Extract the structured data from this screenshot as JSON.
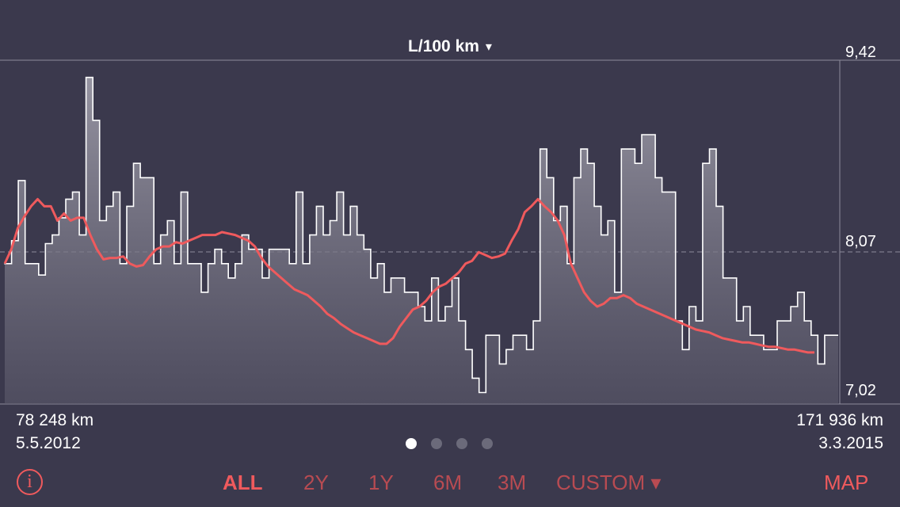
{
  "header": {
    "unit_label": "L/100 km",
    "caret": "▾"
  },
  "axis": {
    "max_label": "9,42",
    "mid_label": "8,07",
    "min_label": "7,02"
  },
  "footer": {
    "start_km": "78 248 km",
    "start_date": "5.5.2012",
    "end_km": "171 936 km",
    "end_date": "3.3.2015"
  },
  "pager": {
    "count": 4,
    "active": 0
  },
  "range_buttons": [
    "ALL",
    "2Y",
    "1Y",
    "6M",
    "3M",
    "CUSTOM ▾"
  ],
  "active_range": "ALL",
  "map_label": "MAP",
  "info_icon": "i",
  "colors": {
    "background": "#3b394d",
    "accent": "#ef5a5d",
    "accent_dim": "#b84b52",
    "trend": "#ef5a5d"
  },
  "chart_data": {
    "type": "area",
    "ylim": [
      7.02,
      9.42
    ],
    "mean_line": 8.07,
    "x_start": "78 248 km",
    "x_end": "171 936 km",
    "series": [
      {
        "values": [
          8.0,
          8.16,
          8.58,
          8.0,
          8.0,
          7.92,
          8.14,
          8.2,
          8.32,
          8.45,
          8.5,
          8.2,
          9.3,
          9.0,
          8.3,
          8.4,
          8.5,
          8.0,
          8.4,
          8.7,
          8.6,
          8.6,
          8.0,
          8.2,
          8.3,
          8.0,
          8.5,
          8.0,
          8.0,
          7.8,
          8.0,
          8.1,
          8.0,
          7.9,
          8.0,
          8.2,
          8.1,
          8.1,
          7.9,
          8.1,
          8.1,
          8.1,
          8.0,
          8.5,
          8.0,
          8.2,
          8.4,
          8.2,
          8.3,
          8.5,
          8.2,
          8.4,
          8.2,
          8.1,
          7.9,
          8.0,
          7.8,
          7.9,
          7.9,
          7.8,
          7.8,
          7.7,
          7.6,
          7.9,
          7.6,
          7.7,
          7.9,
          7.6,
          7.4,
          7.2,
          7.1,
          7.5,
          7.5,
          7.3,
          7.4,
          7.5,
          7.5,
          7.4,
          7.6,
          8.8,
          8.6,
          8.3,
          8.4,
          8.0,
          8.6,
          8.8,
          8.7,
          8.4,
          8.2,
          8.3,
          7.8,
          8.8,
          8.8,
          8.7,
          8.9,
          8.9,
          8.6,
          8.5,
          8.5,
          7.6,
          7.4,
          7.7,
          7.6,
          8.7,
          8.8,
          8.4,
          7.9,
          7.9,
          7.6,
          7.7,
          7.5,
          7.5,
          7.4,
          7.4,
          7.6,
          7.6,
          7.7,
          7.8,
          7.6,
          7.5,
          7.3,
          7.5,
          7.5
        ]
      },
      {
        "name": "trend",
        "values": [
          8.0,
          8.1,
          8.25,
          8.33,
          8.4,
          8.45,
          8.4,
          8.4,
          8.3,
          8.35,
          8.3,
          8.32,
          8.32,
          8.2,
          8.1,
          8.03,
          8.04,
          8.04,
          8.05,
          8.0,
          7.98,
          7.99,
          8.05,
          8.1,
          8.12,
          8.12,
          8.15,
          8.14,
          8.16,
          8.18,
          8.2,
          8.2,
          8.2,
          8.22,
          8.21,
          8.2,
          8.18,
          8.16,
          8.12,
          8.04,
          7.98,
          7.94,
          7.9,
          7.86,
          7.82,
          7.8,
          7.78,
          7.74,
          7.7,
          7.65,
          7.62,
          7.58,
          7.55,
          7.52,
          7.5,
          7.48,
          7.46,
          7.44,
          7.44,
          7.48,
          7.56,
          7.62,
          7.68,
          7.7,
          7.74,
          7.8,
          7.84,
          7.86,
          7.9,
          7.94,
          8.0,
          8.02,
          8.08,
          8.06,
          8.04,
          8.05,
          8.07,
          8.16,
          8.24,
          8.36,
          8.4,
          8.45,
          8.4,
          8.36,
          8.3,
          8.2,
          8.0,
          7.9,
          7.8,
          7.74,
          7.7,
          7.72,
          7.76,
          7.76,
          7.78,
          7.76,
          7.72,
          7.7,
          7.68,
          7.66,
          7.64,
          7.62,
          7.6,
          7.58,
          7.56,
          7.54,
          7.53,
          7.52,
          7.5,
          7.48,
          7.47,
          7.46,
          7.45,
          7.45,
          7.44,
          7.43,
          7.42,
          7.42,
          7.41,
          7.4,
          7.4,
          7.39,
          7.38,
          7.38
        ]
      }
    ]
  }
}
